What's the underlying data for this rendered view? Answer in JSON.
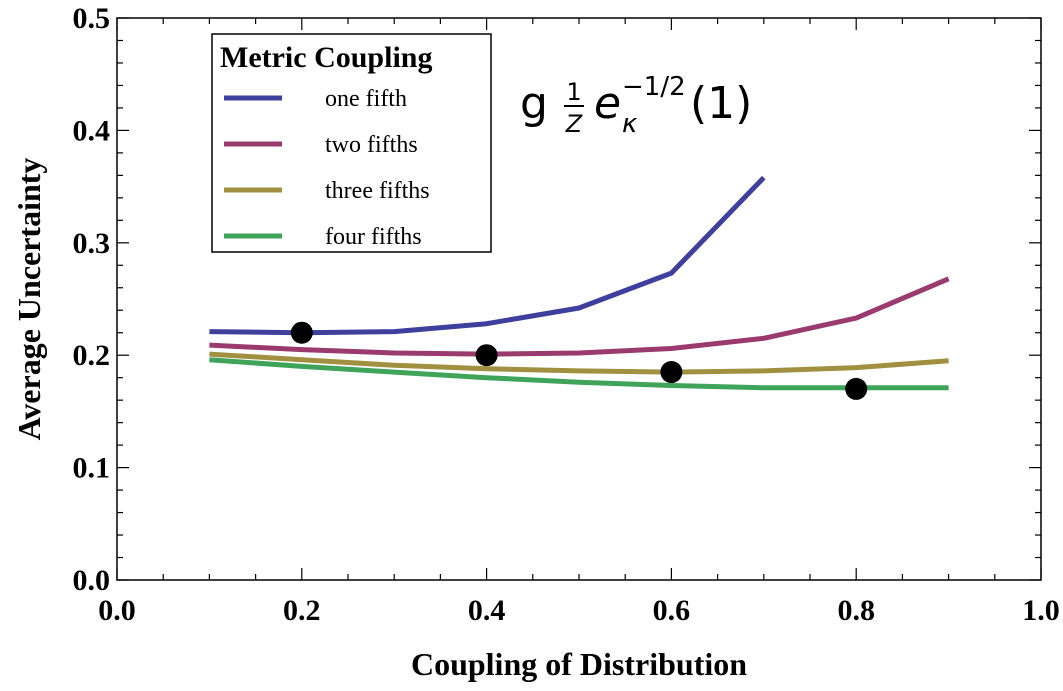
{
  "chart_data": {
    "type": "line",
    "title": "",
    "xlabel": "Coupling of Distribution",
    "ylabel": "Average Uncertainty",
    "xlim": [
      0.0,
      1.0
    ],
    "ylim": [
      0.0,
      0.5
    ],
    "x_ticks": [
      "0.0",
      "0.2",
      "0.4",
      "0.6",
      "0.8",
      "1.0"
    ],
    "y_ticks": [
      "0.0",
      "0.1",
      "0.2",
      "0.3",
      "0.4",
      "0.5"
    ],
    "x_tick_values": [
      0.0,
      0.2,
      0.4,
      0.6,
      0.8,
      1.0
    ],
    "y_tick_values": [
      0.0,
      0.1,
      0.2,
      0.3,
      0.4,
      0.5
    ],
    "x_minor_step": 0.05,
    "y_minor_step": 0.02,
    "grid": false,
    "legend": {
      "title": "Metric Coupling",
      "position": "top-left"
    },
    "annotation": {
      "g": "g",
      "frac_num": "1",
      "frac_den": "Z",
      "e": "e",
      "sub": "κ",
      "sup": "−1/2",
      "arg": "(1)"
    },
    "series": [
      {
        "name": "one fifth",
        "color": "#3f3f9e",
        "x": [
          0.1,
          0.2,
          0.3,
          0.4,
          0.5,
          0.6,
          0.7
        ],
        "y": [
          0.221,
          0.22,
          0.221,
          0.228,
          0.242,
          0.273,
          0.358
        ]
      },
      {
        "name": "two fifths",
        "color": "#9b3a6e",
        "x": [
          0.1,
          0.2,
          0.3,
          0.4,
          0.5,
          0.6,
          0.7,
          0.8,
          0.9
        ],
        "y": [
          0.209,
          0.205,
          0.202,
          0.201,
          0.202,
          0.206,
          0.215,
          0.233,
          0.268
        ]
      },
      {
        "name": "three fifths",
        "color": "#a0903f",
        "x": [
          0.1,
          0.2,
          0.3,
          0.4,
          0.5,
          0.6,
          0.7,
          0.8,
          0.9
        ],
        "y": [
          0.201,
          0.196,
          0.191,
          0.188,
          0.186,
          0.185,
          0.186,
          0.189,
          0.195
        ]
      },
      {
        "name": "four fifths",
        "color": "#3fa35a",
        "x": [
          0.1,
          0.2,
          0.3,
          0.4,
          0.5,
          0.6,
          0.7,
          0.8,
          0.9
        ],
        "y": [
          0.196,
          0.19,
          0.185,
          0.18,
          0.176,
          0.173,
          0.171,
          0.171,
          0.171
        ]
      }
    ],
    "points": {
      "color": "#000000",
      "x": [
        0.2,
        0.4,
        0.6,
        0.8
      ],
      "y": [
        0.22,
        0.2,
        0.185,
        0.17
      ]
    }
  }
}
